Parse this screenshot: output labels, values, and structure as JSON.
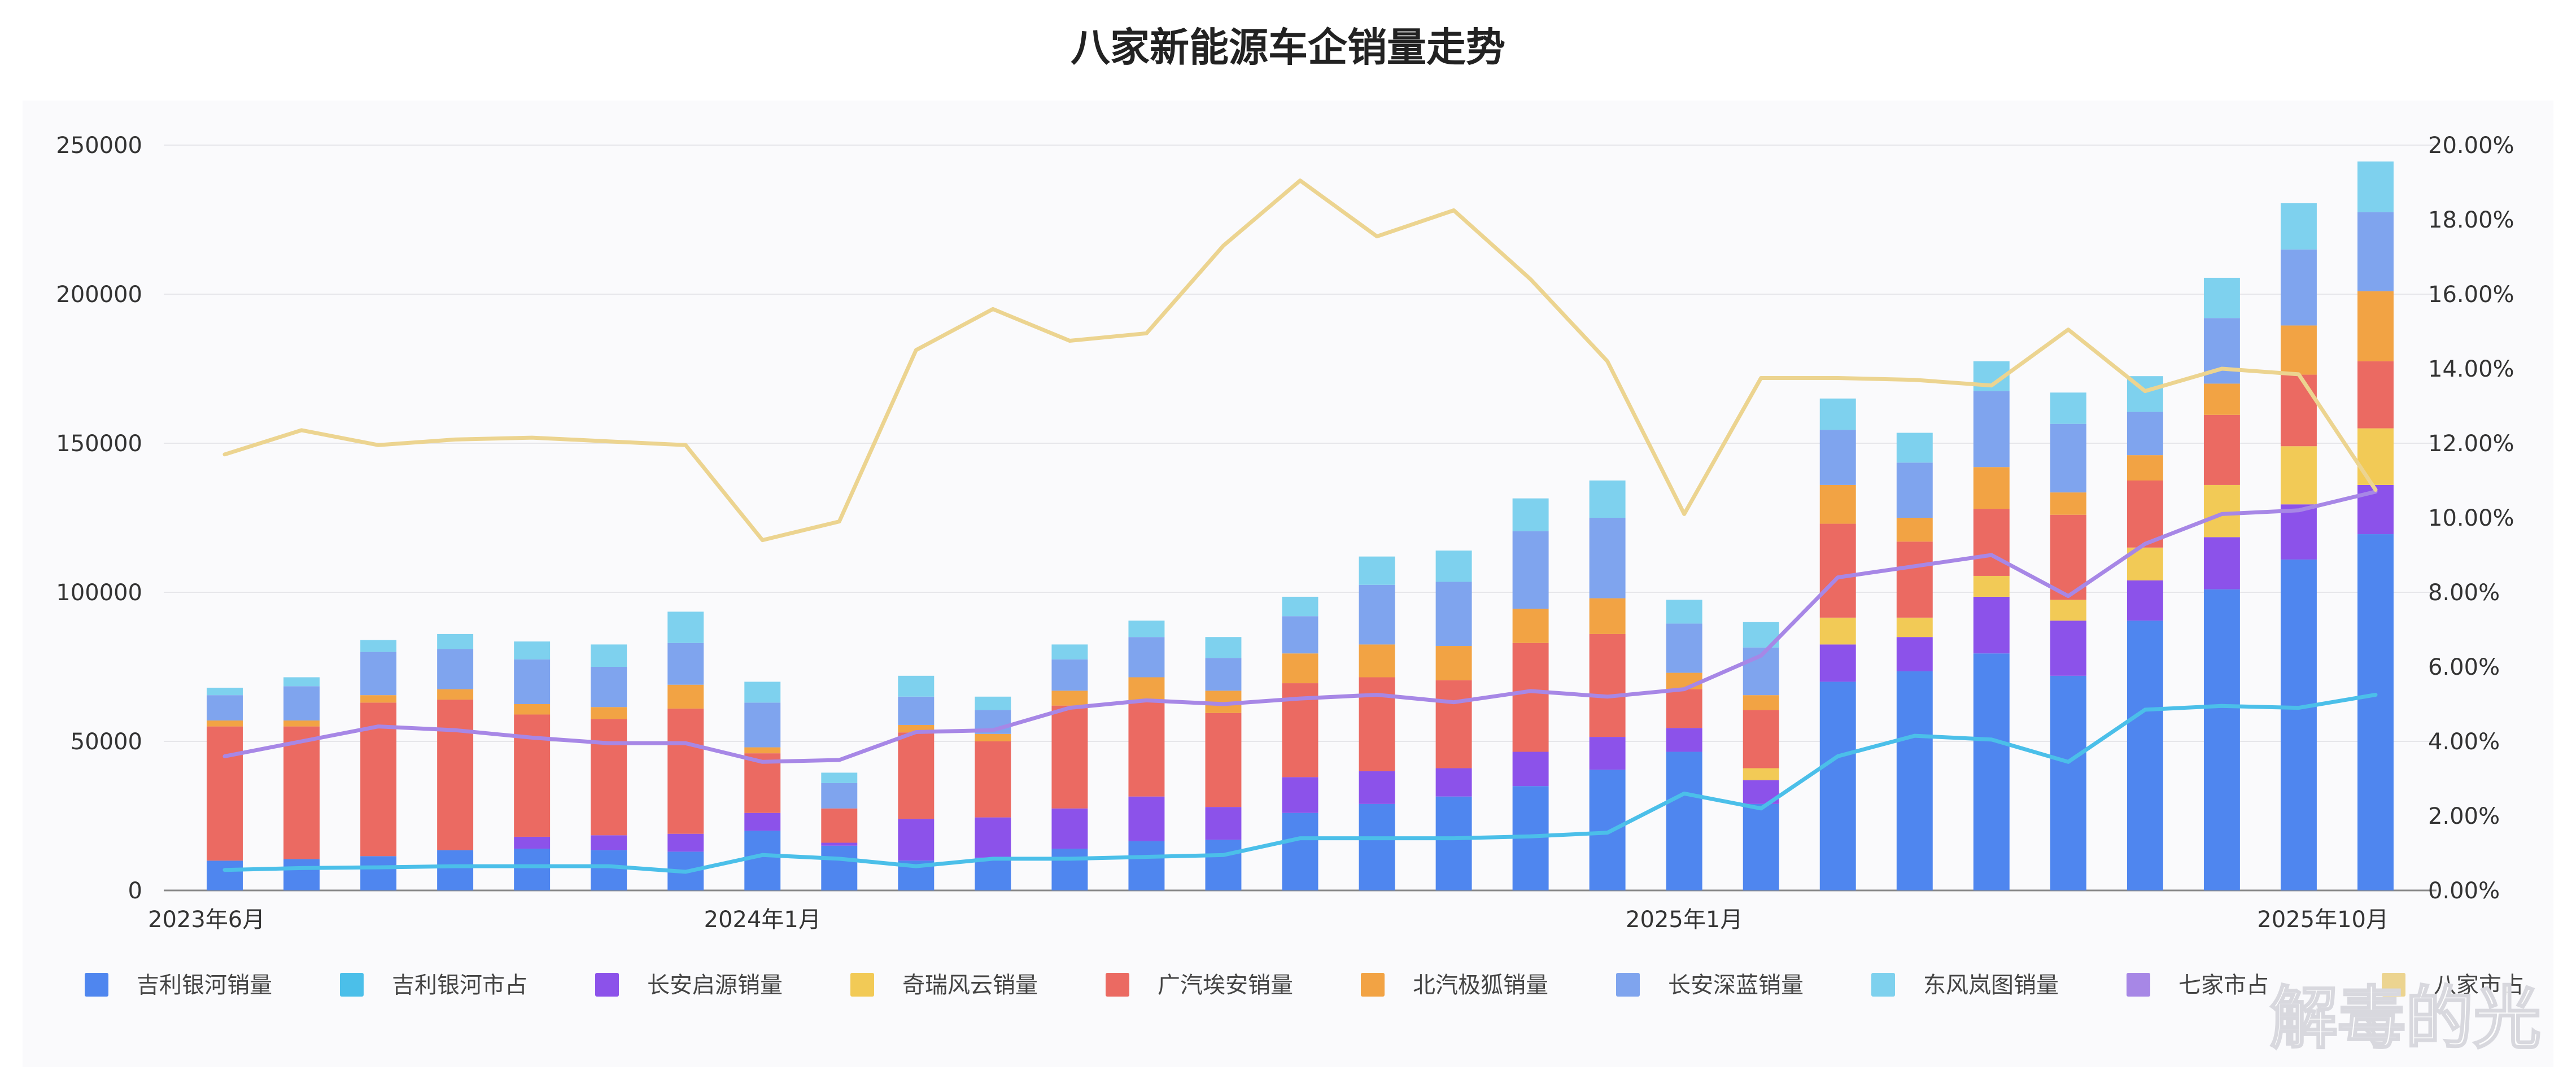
{
  "chart_data": {
    "type": "bar",
    "title": "八家新能源车企销量走势",
    "categories": [
      "2023-06",
      "2023-07",
      "2023-08",
      "2023-09",
      "2023-10",
      "2023-11",
      "2023-12",
      "2024-01",
      "2024-02",
      "2024-03",
      "2024-04",
      "2024-05",
      "2024-06",
      "2024-07",
      "2024-08",
      "2024-09",
      "2024-10",
      "2024-11",
      "2024-12",
      "2025-01",
      "2025-02",
      "2025-03",
      "2025-04",
      "2025-05",
      "2025-06",
      "2025-07",
      "2025-08",
      "2025-09",
      "2025-10"
    ],
    "x_tick_labels": [
      "2023年6月",
      "2024年1月",
      "2025年1月",
      "2025年10月"
    ],
    "y_left_ticks": [
      "0",
      "50000",
      "100000",
      "150000",
      "200000",
      "250000"
    ],
    "y_right_ticks": [
      "0.00%",
      "2.00%",
      "4.00%",
      "6.00%",
      "8.00%",
      "10.00%",
      "12.00%",
      "14.00%",
      "16.00%",
      "18.00%",
      "20.00%"
    ],
    "ylim_left": [
      0,
      250000
    ],
    "ylim_right": [
      0,
      20
    ],
    "stacked": true,
    "series": [
      {
        "name": "吉利银河销量",
        "color": "#4f86ef",
        "values": [
          10000,
          10500,
          11500,
          13500,
          14000,
          13500,
          13000,
          20000,
          15000,
          10000,
          11000,
          14000,
          16500,
          17000,
          26000,
          29000,
          31500,
          35000,
          40500,
          46500,
          29000,
          70000,
          73500,
          79500,
          72000,
          90500,
          101000,
          111000,
          119500
        ]
      },
      {
        "name": "长安启源销量",
        "color": "#8c52ea",
        "values": [
          0,
          0,
          0,
          0,
          4000,
          5000,
          6000,
          6000,
          1000,
          14000,
          13500,
          13500,
          15000,
          11000,
          12000,
          11000,
          9500,
          11500,
          11000,
          8000,
          8000,
          12500,
          11500,
          19000,
          18500,
          13500,
          17500,
          18500,
          16500
        ]
      },
      {
        "name": "奇瑞风云销量",
        "color": "#f2ca56",
        "values": [
          0,
          0,
          0,
          0,
          0,
          0,
          0,
          0,
          0,
          0,
          0,
          0,
          0,
          0,
          0,
          0,
          0,
          0,
          0,
          0,
          4000,
          9000,
          6500,
          7000,
          7000,
          11000,
          17500,
          19500,
          19000
        ]
      },
      {
        "name": "广汽埃安销量",
        "color": "#eb6a62",
        "values": [
          45000,
          44500,
          51500,
          50500,
          41000,
          39000,
          42000,
          20000,
          11500,
          29000,
          25500,
          34500,
          32000,
          31500,
          31500,
          31500,
          29500,
          36500,
          34500,
          13000,
          19500,
          31500,
          25500,
          22500,
          28500,
          22500,
          23500,
          24000,
          22500
        ]
      },
      {
        "name": "北汽极狐销量",
        "color": "#f2a344",
        "values": [
          2000,
          2000,
          2500,
          3500,
          3500,
          4000,
          8000,
          2000,
          0,
          2500,
          2500,
          5000,
          8000,
          7500,
          10000,
          11000,
          11500,
          11500,
          12000,
          5500,
          5000,
          13000,
          8000,
          14000,
          7500,
          8500,
          10500,
          16500,
          23500
        ]
      },
      {
        "name": "长安深蓝销量",
        "color": "#7fa4ee",
        "values": [
          8500,
          11500,
          14500,
          13500,
          15000,
          13500,
          14000,
          15000,
          8500,
          9500,
          8000,
          10500,
          13500,
          11000,
          12500,
          20000,
          21500,
          26000,
          27000,
          16500,
          16000,
          18500,
          18500,
          25500,
          23000,
          14500,
          22000,
          25500,
          26500
        ]
      },
      {
        "name": "东风岚图销量",
        "color": "#7ed1ee",
        "values": [
          2500,
          3000,
          4000,
          5000,
          6000,
          7500,
          10500,
          7000,
          3500,
          7000,
          4500,
          5000,
          5500,
          7000,
          6500,
          9500,
          10500,
          11000,
          12500,
          8000,
          8500,
          10500,
          10000,
          10000,
          10500,
          12000,
          13500,
          15500,
          17000
        ]
      }
    ],
    "line_series": [
      {
        "name": "吉利银河市占",
        "color": "#4bbfe9",
        "axis": "right",
        "values": [
          0.55,
          0.6,
          0.62,
          0.65,
          0.65,
          0.65,
          0.5,
          0.95,
          0.85,
          0.65,
          0.85,
          0.85,
          0.9,
          0.95,
          1.4,
          1.4,
          1.4,
          1.45,
          1.55,
          2.6,
          2.2,
          3.6,
          4.15,
          4.05,
          3.45,
          4.85,
          4.95,
          4.9,
          5.25
        ]
      },
      {
        "name": "七家市占",
        "color": "#a787e6",
        "axis": "right",
        "values": [
          3.6,
          4.0,
          4.4,
          4.3,
          4.1,
          3.95,
          3.95,
          3.45,
          3.5,
          4.25,
          4.3,
          4.9,
          5.1,
          5.0,
          5.15,
          5.25,
          5.05,
          5.35,
          5.2,
          5.4,
          6.3,
          8.4,
          8.7,
          9.0,
          7.9,
          9.3,
          10.1,
          10.2,
          10.7
        ]
      },
      {
        "name": "",
        "color": "#ecd490",
        "axis": "right",
        "values": [
          11.7,
          12.35,
          11.95,
          12.1,
          12.15,
          12.05,
          11.95,
          9.4,
          9.9,
          14.5,
          15.6,
          14.75,
          14.95,
          17.3,
          19.05,
          17.55,
          18.25,
          16.4,
          14.2,
          10.1,
          13.75,
          13.75,
          13.7,
          13.55,
          15.05,
          13.4,
          14.0,
          13.85,
          10.75
        ]
      }
    ],
    "legend": [
      {
        "label": "吉利银河销量",
        "color": "#4f86ef"
      },
      {
        "label": "吉利银河市占",
        "color": "#4bbfe9"
      },
      {
        "label": "长安启源销量",
        "color": "#8c52ea"
      },
      {
        "label": "奇瑞风云销量",
        "color": "#f2ca56"
      },
      {
        "label": "广汽埃安销量",
        "color": "#eb6a62"
      },
      {
        "label": "北汽极狐销量",
        "color": "#f2a344"
      },
      {
        "label": "长安深蓝销量",
        "color": "#7fa4ee"
      },
      {
        "label": "东风岚图销量",
        "color": "#7ed1ee"
      },
      {
        "label": "七家市占",
        "color": "#a787e6"
      },
      {
        "label": "八家市占",
        "color": "#ecd490"
      }
    ],
    "legend_position": "bottom",
    "grid": true,
    "watermark": "解毒的光"
  }
}
